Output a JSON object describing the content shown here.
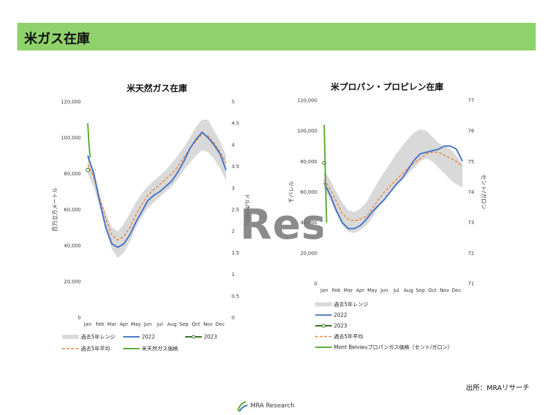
{
  "header": {
    "title": "米ガス在庫"
  },
  "colors": {
    "range": "#d9d9d9",
    "y2022": "#4472c4",
    "y2023": "#2e6b1a",
    "avg": "#ed7d31",
    "price": "#5aa832",
    "title_bar": "#8fd16a"
  },
  "watermark": {
    "text": "Rese"
  },
  "source": {
    "text": "出所：MRAリサーチ"
  },
  "footer": {
    "logo_text": "MRA Research"
  },
  "chart_data": [
    {
      "type": "area",
      "title": "米天然ガス在庫",
      "ylabel": "百万立方メートル",
      "y2label": "ドル/MMBtu",
      "ylim": [
        0,
        120000
      ],
      "y2lim": [
        0,
        5
      ],
      "yticks": [
        "0",
        "20,000",
        "40,000",
        "60,000",
        "80,000",
        "100,000",
        "120,000"
      ],
      "y2ticks": [
        "0",
        "0.5",
        "1",
        "1.5",
        "2",
        "2.5",
        "3",
        "3.5",
        "4",
        "4.5",
        "5"
      ],
      "categories": [
        "Jan",
        "Feb",
        "Mar",
        "Apr",
        "May",
        "Jun",
        "Jul",
        "Aug",
        "Sep",
        "Oct",
        "Nov",
        "Dec"
      ],
      "x": [
        0,
        0.5,
        1,
        1.5,
        2,
        2.5,
        3,
        3.5,
        4,
        4.5,
        5,
        5.5,
        6,
        6.5,
        7,
        7.5,
        8,
        8.5,
        9,
        9.5,
        10,
        10.5,
        11,
        11.5
      ],
      "series": [
        {
          "name": "過去5年レンジ",
          "kind": "range",
          "low": [
            80000,
            72000,
            62000,
            48000,
            38000,
            33000,
            36000,
            42000,
            50000,
            56000,
            61000,
            64000,
            67000,
            70000,
            73000,
            77000,
            82000,
            86000,
            90000,
            93000,
            92000,
            88000,
            83000,
            76000
          ],
          "high": [
            90000,
            82000,
            68000,
            58000,
            50000,
            48000,
            52000,
            58000,
            64000,
            69000,
            73000,
            76000,
            79000,
            82000,
            86000,
            90000,
            95000,
            100000,
            106000,
            110000,
            110000,
            104000,
            98000,
            90000
          ]
        },
        {
          "name": "2022",
          "kind": "line",
          "values": [
            90000,
            80000,
            64000,
            50000,
            41000,
            39000,
            41000,
            46000,
            53000,
            59000,
            65000,
            68000,
            70000,
            73000,
            76000,
            81000,
            87000,
            94000,
            99000,
            103000,
            100000,
            96000,
            91000,
            82000
          ]
        },
        {
          "name": "2023",
          "kind": "point",
          "x": [
            0
          ],
          "values": [
            82000
          ]
        },
        {
          "name": "過去5年平均",
          "kind": "dashed",
          "values": [
            85000,
            78000,
            66000,
            55000,
            46000,
            43000,
            45000,
            50000,
            57000,
            63000,
            68000,
            71000,
            74000,
            77000,
            80000,
            84000,
            89000,
            94000,
            98000,
            102000,
            101000,
            97000,
            92000,
            86000
          ]
        },
        {
          "name": "米天然ガス価格",
          "kind": "price",
          "axis": "y2",
          "x": [
            0,
            0.1,
            0.2
          ],
          "values": [
            4.5,
            4.0,
            3.7
          ]
        }
      ],
      "legend": [
        "過去5年レンジ",
        "2022",
        "2023",
        "過去5年平均",
        "米天然ガス価格"
      ]
    },
    {
      "type": "area",
      "title": "米プロパン・プロピレン在庫",
      "ylabel": "千バレル",
      "y2label": "セント/ガロン",
      "ylim": [
        0,
        120000
      ],
      "y2lim": [
        71,
        77
      ],
      "yticks": [
        "0",
        "20,000",
        "40,000",
        "60,000",
        "80,000",
        "100,000",
        "120,000"
      ],
      "y2ticks": [
        "71",
        "72",
        "73",
        "74",
        "75",
        "76",
        "77"
      ],
      "categories": [
        "Jan",
        "Feb",
        "Mar",
        "Apr",
        "May",
        "Jun",
        "Jul",
        "Aug",
        "Sep",
        "Oct",
        "Nov",
        "Dec"
      ],
      "x": [
        0,
        0.5,
        1,
        1.5,
        2,
        2.5,
        3,
        3.5,
        4,
        4.5,
        5,
        5.5,
        6,
        6.5,
        7,
        7.5,
        8,
        8.5,
        9,
        9.5,
        10,
        10.5,
        11,
        11.5
      ],
      "series": [
        {
          "name": "過去5年レンジ",
          "kind": "range",
          "low": [
            62000,
            55000,
            46000,
            38000,
            34000,
            33000,
            35000,
            38000,
            43000,
            50000,
            55000,
            60000,
            64000,
            68000,
            72000,
            76000,
            80000,
            82000,
            80000,
            76000,
            72000,
            68000,
            65000,
            63000
          ],
          "high": [
            74000,
            68000,
            60000,
            53000,
            48000,
            47000,
            49000,
            53000,
            60000,
            67000,
            73000,
            79000,
            85000,
            90000,
            95000,
            99000,
            101000,
            100000,
            96000,
            92000,
            90000,
            88000,
            84000,
            78000
          ]
        },
        {
          "name": "2022",
          "kind": "line",
          "values": [
            66000,
            58000,
            48000,
            40000,
            36000,
            36000,
            38000,
            42000,
            47000,
            51000,
            55000,
            60000,
            65000,
            69000,
            75000,
            81000,
            85000,
            86000,
            87000,
            88000,
            90000,
            90000,
            88000,
            80000
          ]
        },
        {
          "name": "2023",
          "kind": "point",
          "x": [
            0
          ],
          "values": [
            79000
          ]
        },
        {
          "name": "過去5年平均",
          "kind": "dashed",
          "values": [
            68000,
            62000,
            54000,
            46000,
            42000,
            41000,
            42000,
            44000,
            49000,
            55000,
            60000,
            64000,
            68000,
            72000,
            76000,
            79000,
            82000,
            85000,
            86000,
            86000,
            84000,
            82000,
            80000,
            77000
          ]
        },
        {
          "name": "Mont Belvieuプロパンガス価格（セント/ガロン）",
          "kind": "price",
          "axis": "y2",
          "x": [
            0,
            0.1,
            0.2
          ],
          "values": [
            76.2,
            74.5,
            73.0
          ]
        }
      ],
      "legend": [
        "過去5年レンジ",
        "2022",
        "2023",
        "過去5年平均",
        "Mont Belvieuプロパンガス価格（セント/ガロン）"
      ]
    }
  ]
}
